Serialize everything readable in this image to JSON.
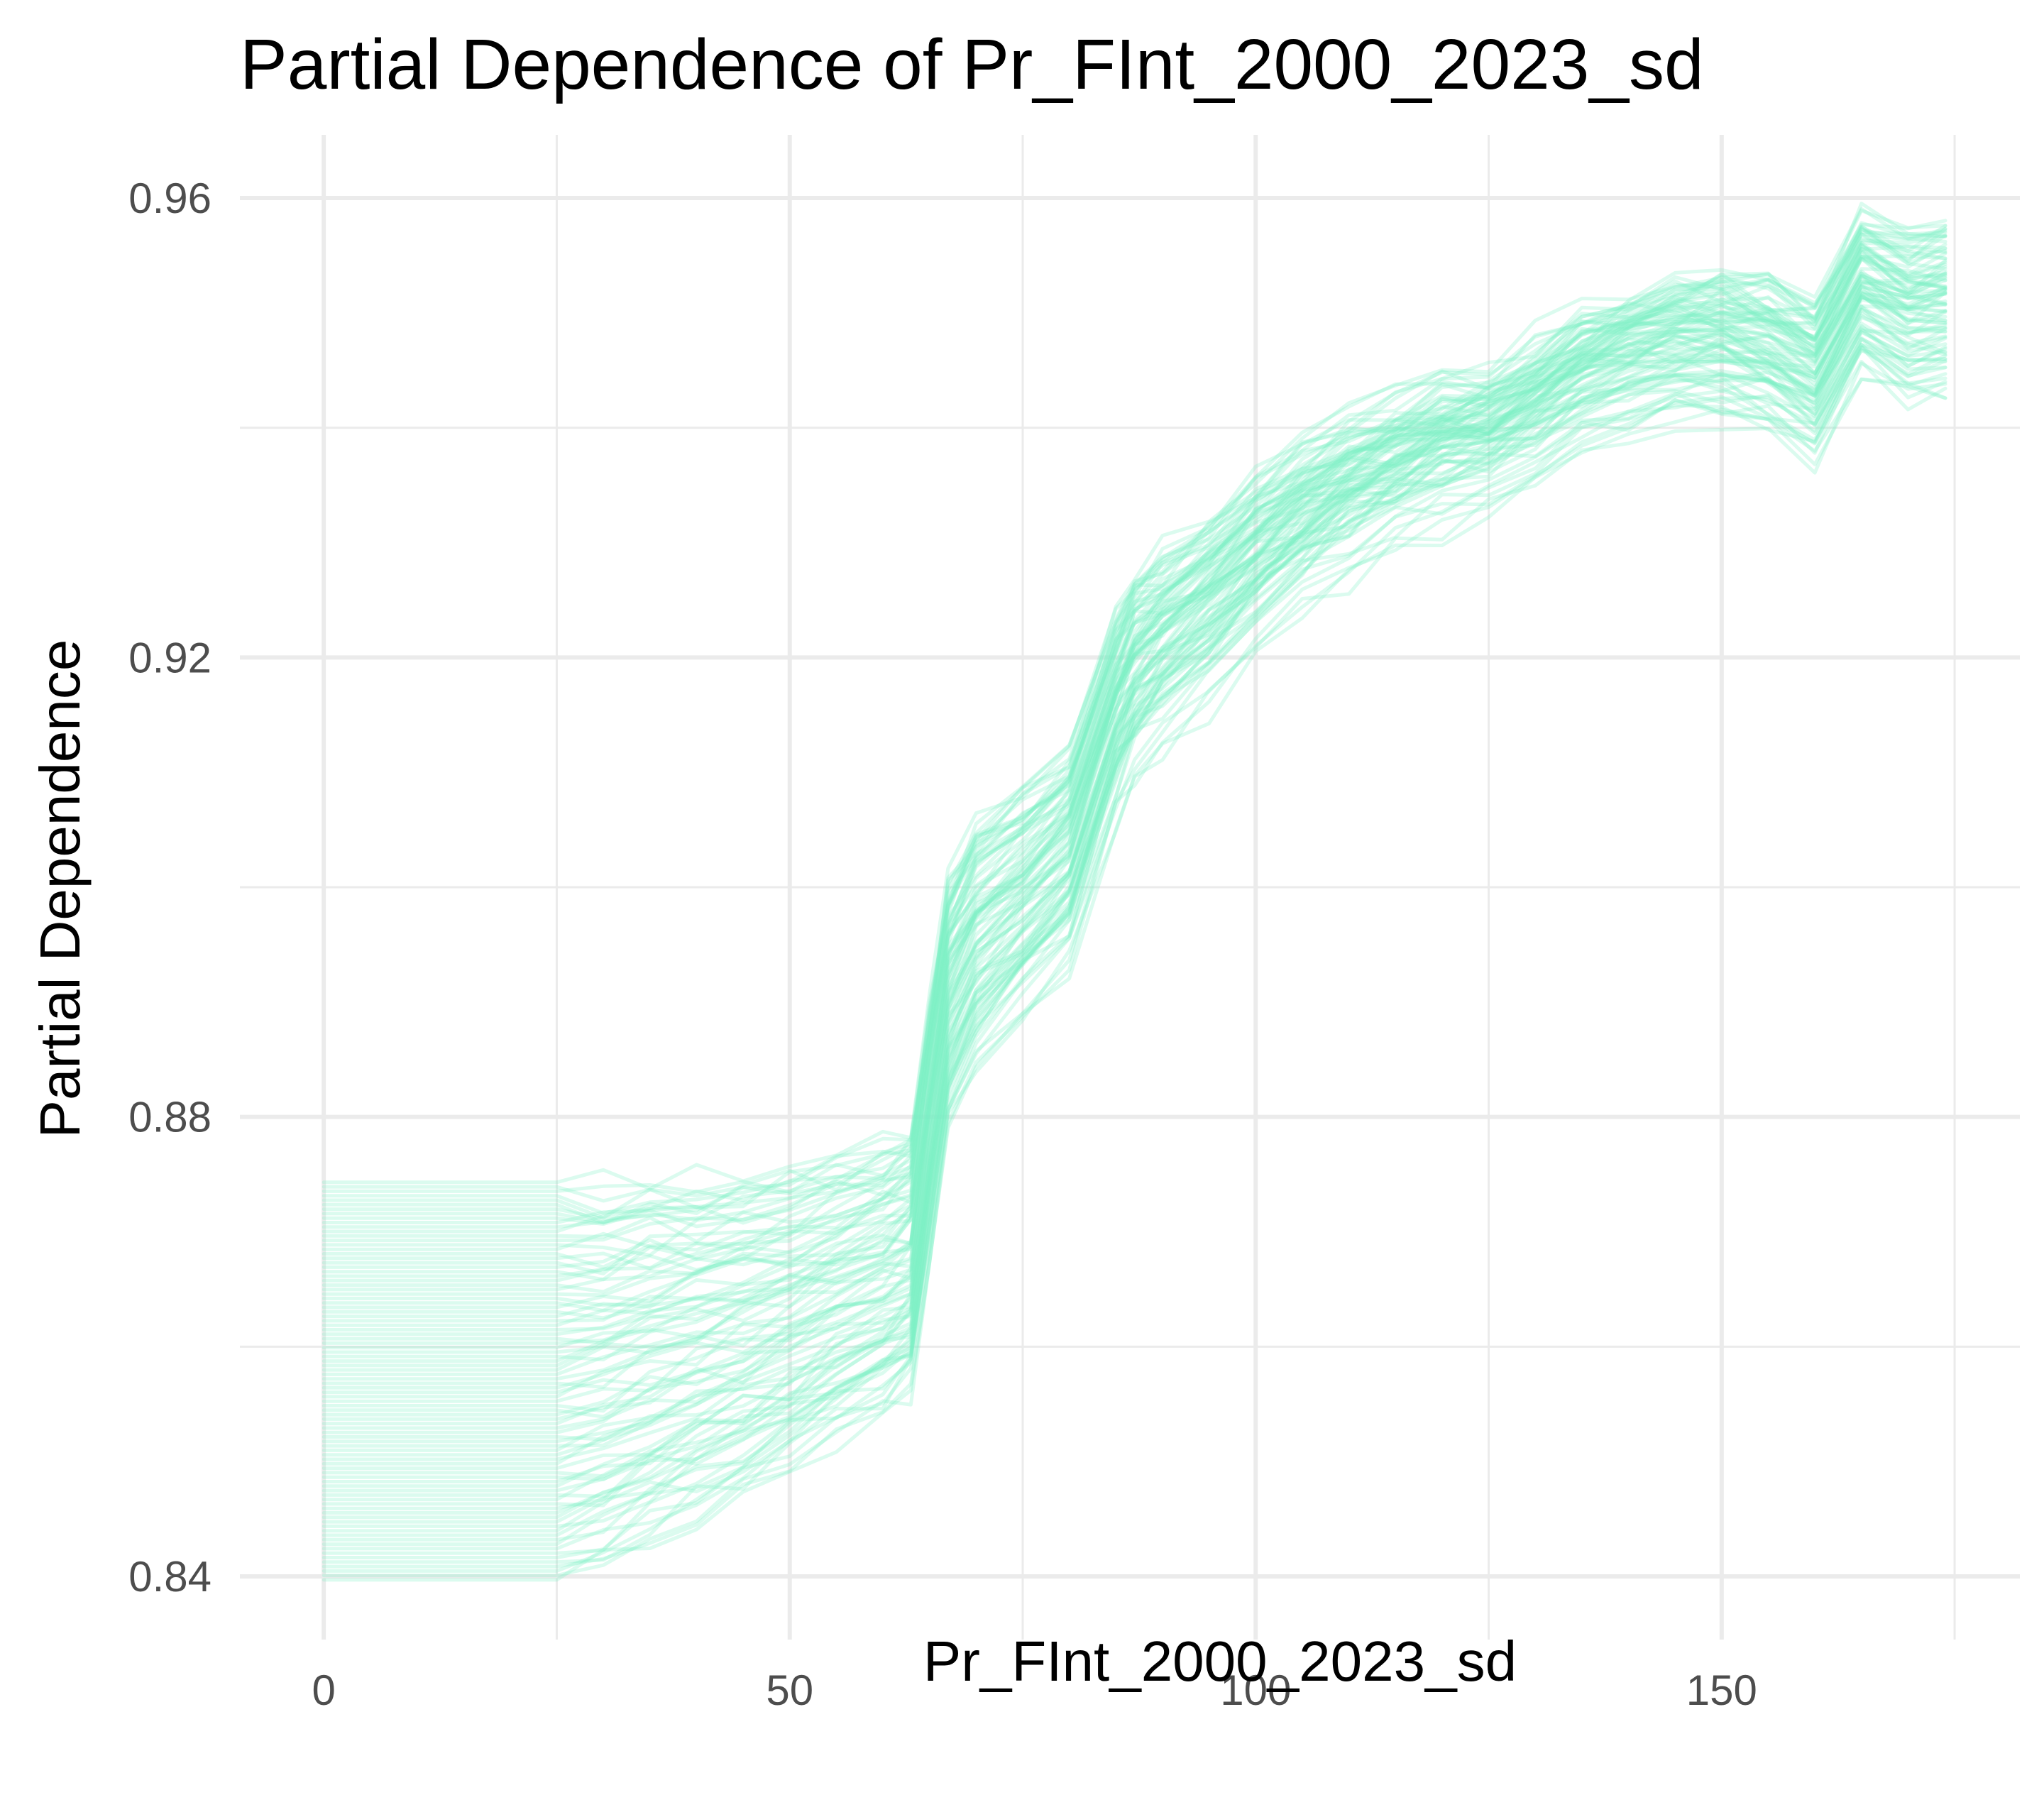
{
  "chart_data": {
    "type": "line",
    "title": "Partial Dependence of Pr_FInt_2000_2023_sd",
    "xlabel": "Pr_FInt_2000_2023_sd",
    "ylabel": "Partial Dependence",
    "xlim": [
      -9,
      182
    ],
    "ylim": [
      0.8345,
      0.9655
    ],
    "x_ticks": [
      0,
      50,
      100,
      150
    ],
    "x_tick_labels": [
      "0",
      "50",
      "100",
      "150"
    ],
    "y_ticks": [
      0.84,
      0.88,
      0.92,
      0.96
    ],
    "y_tick_labels": [
      "0.84",
      "0.88",
      "0.92",
      "0.96"
    ],
    "grid": true,
    "legend": "none",
    "line_color": "#7ef0c6",
    "line_opacity": 0.28,
    "mean_curve": {
      "x": [
        0,
        25,
        30,
        35,
        40,
        45,
        50,
        55,
        60,
        63,
        65,
        67,
        70,
        75,
        80,
        85,
        87,
        90,
        95,
        100,
        105,
        110,
        115,
        120,
        125,
        130,
        135,
        140,
        145,
        150,
        155,
        160,
        165,
        170,
        174
      ],
      "y": [
        0.859,
        0.859,
        0.8595,
        0.8605,
        0.8615,
        0.8625,
        0.864,
        0.8655,
        0.867,
        0.8685,
        0.88,
        0.891,
        0.896,
        0.8995,
        0.9035,
        0.9155,
        0.919,
        0.9215,
        0.9245,
        0.9285,
        0.9315,
        0.934,
        0.936,
        0.9375,
        0.9385,
        0.9405,
        0.943,
        0.9445,
        0.9455,
        0.9455,
        0.9445,
        0.942,
        0.9495,
        0.9475,
        0.948
      ]
    },
    "n_curves": 90,
    "curve_spread": {
      "start_y_range": [
        0.8395,
        0.8745
      ],
      "end_y_range": [
        0.9425,
        0.9595
      ]
    }
  }
}
